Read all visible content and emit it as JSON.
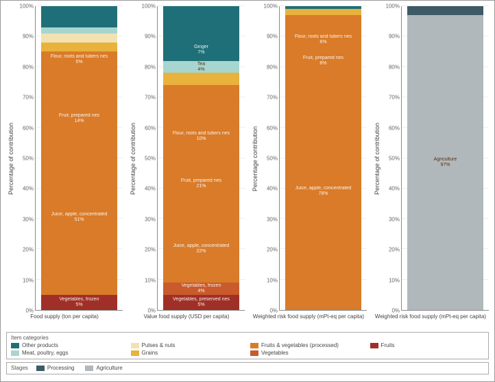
{
  "axis": {
    "ylim": [
      0,
      100
    ],
    "ytick_step": 10,
    "tick_suffix": "%",
    "grid_color": "#eeeeee",
    "axis_color": "#888888",
    "ylabel_default": "Percentage of contribution",
    "label_fontsize": 9,
    "tick_fontsize": 8
  },
  "colors": {
    "other_products": "#1f6f78",
    "pulses_nuts": "#f2e2b1",
    "fruits_veg_processed": "#d97b29",
    "fruits": "#a03027",
    "meat_poultry_eggs": "#a7d6d0",
    "grains": "#e9b23c",
    "vegetables": "#c85a2b",
    "processing": "#3d5a66",
    "agriculture": "#b0b8bc"
  },
  "panels": [
    {
      "xlabel": "Food supply (ton per capita)",
      "ylabel": "Percentage of contribution",
      "segments": [
        {
          "value": 5,
          "color": "#a03027",
          "label": "Vegetables, frozen",
          "pct": "5%"
        },
        {
          "value": 51,
          "color": "#d97b29",
          "label": "Juice, apple, concentrated",
          "pct": "51%"
        },
        {
          "value": 14,
          "color": "#d97b29",
          "label": "Fruit, prepared nes",
          "pct": "14%"
        },
        {
          "value": 10,
          "color": "#d97b29",
          "label": "",
          "pct": ""
        },
        {
          "value": 5,
          "color": "#d97b29",
          "label": "Flour, roots and tubers nes",
          "pct": "5%"
        },
        {
          "value": 3,
          "color": "#e9b23c",
          "label": "",
          "pct": ""
        },
        {
          "value": 3,
          "color": "#f2e2b1",
          "label": "",
          "pct": ""
        },
        {
          "value": 2,
          "color": "#a7d6d0",
          "label": "",
          "pct": ""
        },
        {
          "value": 7,
          "color": "#1f6f78",
          "label": "",
          "pct": ""
        }
      ]
    },
    {
      "xlabel": "Value food supply (USD per capita)",
      "ylabel": "Percentage of contribution",
      "segments": [
        {
          "value": 5,
          "color": "#a03027",
          "label": "Vegetables, preserved nes",
          "pct": "5%"
        },
        {
          "value": 4,
          "color": "#c85a2b",
          "label": "Vegetables, frozen",
          "pct": "4%"
        },
        {
          "value": 22,
          "color": "#d97b29",
          "label": "Juice, apple, concentrated",
          "pct": "22%"
        },
        {
          "value": 21,
          "color": "#d97b29",
          "label": "Fruit, prepared nes",
          "pct": "21%"
        },
        {
          "value": 10,
          "color": "#d97b29",
          "label": "Flour, roots and tubers nes",
          "pct": "10%"
        },
        {
          "value": 12,
          "color": "#d97b29",
          "label": "",
          "pct": ""
        },
        {
          "value": 4,
          "color": "#e9b23c",
          "label": "",
          "pct": ""
        },
        {
          "value": 4,
          "color": "#a7d6d0",
          "label": "Tea",
          "pct": "4%",
          "dark": true
        },
        {
          "value": 7,
          "color": "#1f6f78",
          "label": "Ginger",
          "pct": "7%"
        },
        {
          "value": 11,
          "color": "#1f6f78",
          "label": "",
          "pct": ""
        }
      ]
    },
    {
      "xlabel": "Weighted risk food supply (mPt-eq per capita)",
      "ylabel": "Percentage contribution",
      "segments": [
        {
          "value": 78,
          "color": "#d97b29",
          "label": "Juice, apple, concentrated",
          "pct": "78%"
        },
        {
          "value": 8,
          "color": "#d97b29",
          "label": "Fruit, prepared nes",
          "pct": "8%"
        },
        {
          "value": 6,
          "color": "#d97b29",
          "label": "Flour, roots and tubers nes",
          "pct": "6%"
        },
        {
          "value": 5,
          "color": "#d97b29",
          "label": "",
          "pct": ""
        },
        {
          "value": 2,
          "color": "#e9b23c",
          "label": "",
          "pct": ""
        },
        {
          "value": 1,
          "color": "#1f6f78",
          "label": "",
          "pct": ""
        }
      ]
    },
    {
      "xlabel": "Weighted risk food supply (mPt-eq per capita)",
      "ylabel": "Percentage of contribution",
      "segments": [
        {
          "value": 97,
          "color": "#b0b8bc",
          "label": "Agriculture",
          "pct": "97%",
          "dark": true
        },
        {
          "value": 3,
          "color": "#3d5a66",
          "label": "",
          "pct": ""
        }
      ]
    }
  ],
  "legend_categories": {
    "title": "Item categories",
    "items": [
      {
        "label": "Other products",
        "color": "#1f6f78"
      },
      {
        "label": "Pulses & nuts",
        "color": "#f2e2b1"
      },
      {
        "label": "Fruits & vegetables (processed)",
        "color": "#d97b29"
      },
      {
        "label": "Fruits",
        "color": "#a03027"
      },
      {
        "label": "Meat, poultry, eggs",
        "color": "#a7d6d0"
      },
      {
        "label": "Grains",
        "color": "#e9b23c"
      },
      {
        "label": "Vegetables",
        "color": "#c85a2b"
      }
    ]
  },
  "legend_stages": {
    "title": "Stages",
    "items": [
      {
        "label": "Processing",
        "color": "#3d5a66"
      },
      {
        "label": "Agriculture",
        "color": "#b0b8bc"
      }
    ]
  }
}
